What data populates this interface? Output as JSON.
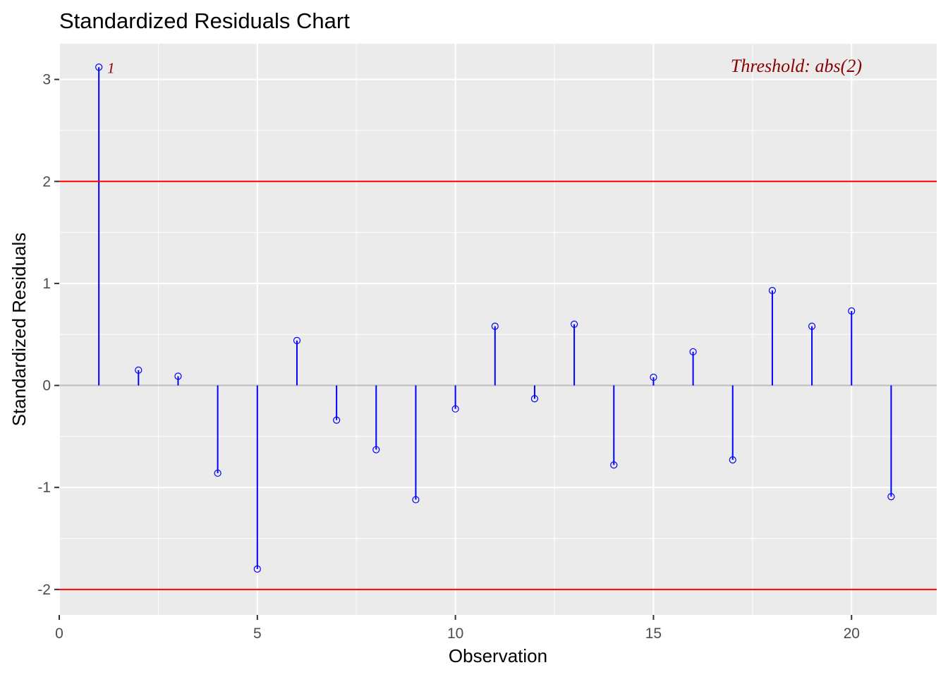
{
  "chart_data": {
    "type": "scatter",
    "title": "Standardized Residuals Chart",
    "xlabel": "Observation",
    "ylabel": "Standardized Residuals",
    "xlim": [
      0,
      22.15
    ],
    "ylim": [
      -2.25,
      3.35
    ],
    "x_ticks": [
      0,
      5,
      10,
      15,
      20
    ],
    "y_ticks": [
      -2,
      -1,
      0,
      1,
      2,
      3
    ],
    "grid": true,
    "threshold": 2,
    "threshold_label": "Threshold: abs(2)",
    "series": [
      {
        "x": [
          1,
          2,
          3,
          4,
          5,
          6,
          7,
          8,
          9,
          10,
          11,
          12,
          13,
          14,
          15,
          16,
          17,
          18,
          19,
          20,
          21
        ],
        "values": [
          3.12,
          0.15,
          0.09,
          -0.86,
          -1.8,
          0.44,
          -0.34,
          -0.63,
          -1.12,
          -0.23,
          0.58,
          -0.13,
          0.6,
          -0.78,
          0.08,
          0.33,
          -0.73,
          0.93,
          0.58,
          0.73,
          -1.09
        ]
      }
    ],
    "point_labels": [
      {
        "x": 1,
        "label": "1"
      }
    ],
    "colors": {
      "stem": "#0000ff",
      "threshold_line": "#ff0000",
      "annotation": "#8b0000",
      "zero_line": "#bebebe",
      "panel_bg": "#ebebeb",
      "grid": "#ffffff"
    }
  }
}
